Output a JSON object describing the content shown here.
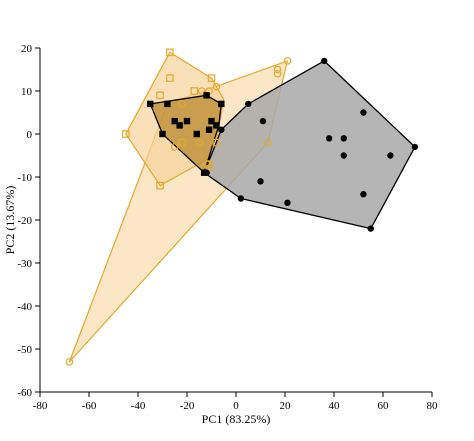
{
  "chart_data": {
    "type": "scatter",
    "xlabel": "PC1 (83.25%)",
    "ylabel": "PC2 (13.67%)",
    "xlim": [
      -80,
      80
    ],
    "ylim": [
      -60,
      20
    ],
    "xticks": [
      "-80",
      "-60",
      "-40",
      "-20",
      "0",
      "20",
      "40",
      "60",
      "80"
    ],
    "yticks": [
      "20",
      "10",
      "0",
      "-10",
      "-20",
      "-30",
      "-40",
      "-50",
      "-60"
    ],
    "grid": false,
    "legend": "none",
    "colors": {
      "gold": "#e3a92b",
      "gold_fill": "#f7d9a8",
      "dark_fill": "#a8a8a8",
      "black": "#000000"
    },
    "series": [
      {
        "marker": "open-circle",
        "color": "#e3a92b",
        "hull_fill": "#f9dcae",
        "points": [
          [
            -68,
            -53
          ],
          [
            21,
            17
          ],
          [
            17,
            15
          ],
          [
            17,
            14
          ],
          [
            -8,
            11
          ],
          [
            -14,
            10
          ],
          [
            -11,
            10
          ],
          [
            -22,
            7
          ],
          [
            -12,
            -7
          ],
          [
            -15,
            -2
          ],
          [
            13,
            -2
          ],
          [
            -11,
            -8
          ],
          [
            -25,
            -3
          ]
        ],
        "hull": [
          [
            -68,
            -53
          ],
          [
            -28,
            7
          ],
          [
            21,
            17
          ],
          [
            13,
            -2
          ]
        ]
      },
      {
        "marker": "open-square",
        "color": "#e3a92b",
        "hull_fill": "#f6d39a",
        "points": [
          [
            -27,
            19
          ],
          [
            -10,
            13
          ],
          [
            -27,
            13
          ],
          [
            -45,
            0
          ],
          [
            -31,
            9
          ],
          [
            -31,
            -12
          ],
          [
            -17,
            10
          ],
          [
            -11,
            -7
          ],
          [
            -8,
            -2
          ],
          [
            -22,
            -2
          ]
        ],
        "hull": [
          [
            -45,
            0
          ],
          [
            -27,
            19
          ],
          [
            -10,
            13
          ],
          [
            -5,
            8
          ],
          [
            -9,
            -5
          ],
          [
            -31,
            -12
          ]
        ]
      },
      {
        "marker": "filled-square",
        "color": "#000000",
        "hull_fill": "#b98a30",
        "points": [
          [
            -35,
            7
          ],
          [
            -28,
            7
          ],
          [
            -12,
            9
          ],
          [
            -6,
            7
          ],
          [
            -30,
            0
          ],
          [
            -25,
            3
          ],
          [
            -23,
            2
          ],
          [
            -20,
            3
          ],
          [
            -16,
            0
          ],
          [
            -11,
            1
          ],
          [
            -10,
            3
          ],
          [
            -13,
            -9
          ],
          [
            -8,
            2
          ]
        ],
        "hull": [
          [
            -35,
            7
          ],
          [
            -12,
            9
          ],
          [
            -6,
            7
          ],
          [
            -7,
            2
          ],
          [
            -13,
            -9
          ],
          [
            -30,
            0
          ]
        ]
      },
      {
        "marker": "filled-circle",
        "color": "#000000",
        "hull_fill": "#a8a8a8",
        "points": [
          [
            36,
            17
          ],
          [
            5,
            7
          ],
          [
            11,
            3
          ],
          [
            -12,
            -9
          ],
          [
            -6,
            1
          ],
          [
            73,
            -3
          ],
          [
            52,
            5
          ],
          [
            63,
            -5
          ],
          [
            44,
            -1
          ],
          [
            38,
            -1
          ],
          [
            44,
            -5
          ],
          [
            52,
            -14
          ],
          [
            10,
            -11
          ],
          [
            2,
            -15
          ],
          [
            21,
            -16
          ],
          [
            55,
            -22
          ]
        ],
        "hull": [
          [
            36,
            17
          ],
          [
            73,
            -3
          ],
          [
            55,
            -22
          ],
          [
            2,
            -15
          ],
          [
            -13,
            -9
          ],
          [
            -6,
            1
          ],
          [
            5,
            7
          ]
        ]
      }
    ]
  }
}
